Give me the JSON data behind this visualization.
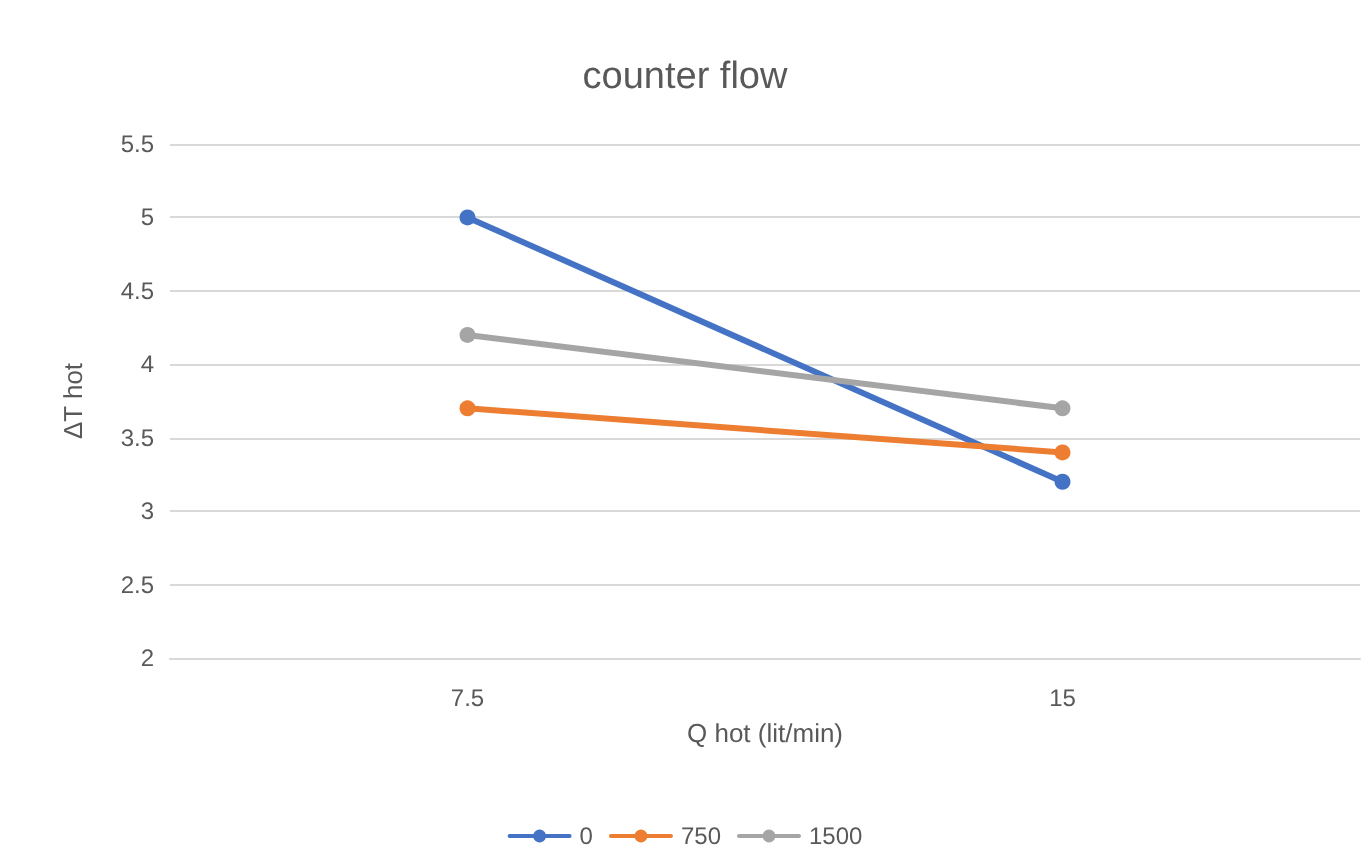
{
  "chart_data": {
    "type": "line",
    "title": "counter flow",
    "xlabel": "Q hot (lit/min)",
    "ylabel": "ΔT hot",
    "categories": [
      "7.5",
      "15"
    ],
    "series": [
      {
        "name": "0",
        "color": "#4472c4",
        "values": [
          5,
          3.2
        ]
      },
      {
        "name": "750",
        "color": "#ed7d31",
        "values": [
          3.7,
          3.4
        ]
      },
      {
        "name": "1500",
        "color": "#a5a5a5",
        "values": [
          4.2,
          3.7
        ]
      }
    ],
    "ylim": [
      2,
      5.5
    ],
    "yticks": [
      2,
      2.5,
      3,
      3.5,
      4,
      4.5,
      5,
      5.5
    ],
    "grid": "y",
    "legend": "bottom",
    "marker": "circle",
    "line_style": "solid"
  }
}
